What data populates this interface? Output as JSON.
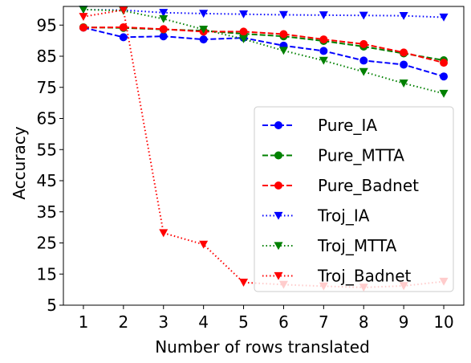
{
  "chart_data": {
    "type": "line",
    "title": "",
    "xlabel": "Number of rows translated",
    "ylabel": "Accuracy",
    "x": [
      1,
      2,
      3,
      4,
      5,
      6,
      7,
      8,
      9,
      10
    ],
    "xlim": [
      0.5,
      10.5
    ],
    "ylim": [
      5,
      101
    ],
    "yticks": [
      5,
      15,
      25,
      35,
      45,
      55,
      65,
      75,
      85,
      95
    ],
    "grid": false,
    "legend_position": "lower-right",
    "series": [
      {
        "name": "Pure_IA",
        "color": "#0000ff",
        "linestyle": "dashed",
        "marker": "circle",
        "values": [
          94.2,
          91.1,
          91.4,
          90.4,
          90.9,
          88.4,
          86.7,
          83.6,
          82.3,
          78.5
        ]
      },
      {
        "name": "Pure_MTTA",
        "color": "#008000",
        "linestyle": "dashed",
        "marker": "circle",
        "values": [
          94.3,
          94.1,
          93.6,
          93.2,
          92.2,
          91.4,
          89.9,
          88.1,
          85.9,
          83.7
        ]
      },
      {
        "name": "Pure_Badnet",
        "color": "#ff0000",
        "linestyle": "dashed",
        "marker": "circle",
        "values": [
          94.2,
          94.3,
          93.7,
          92.9,
          92.9,
          92.1,
          90.4,
          88.9,
          86.2,
          82.9
        ]
      },
      {
        "name": "Troj_IA",
        "color": "#0000ff",
        "linestyle": "dotted",
        "marker": "triangle-down",
        "values": [
          100,
          99.8,
          99.0,
          98.7,
          98.5,
          98.3,
          98.2,
          98.1,
          98.0,
          97.5
        ]
      },
      {
        "name": "Troj_MTTA",
        "color": "#008000",
        "linestyle": "dotted",
        "marker": "triangle-down",
        "values": [
          100,
          99.6,
          97.0,
          93.6,
          90.5,
          86.8,
          83.6,
          80.0,
          76.3,
          73.0
        ]
      },
      {
        "name": "Troj_Badnet",
        "color": "#ff0000",
        "linestyle": "dotted",
        "marker": "triangle-down",
        "values": [
          97.7,
          99.9,
          28.2,
          24.5,
          12.3,
          11.6,
          11.1,
          10.7,
          11.2,
          12.6
        ]
      }
    ]
  }
}
